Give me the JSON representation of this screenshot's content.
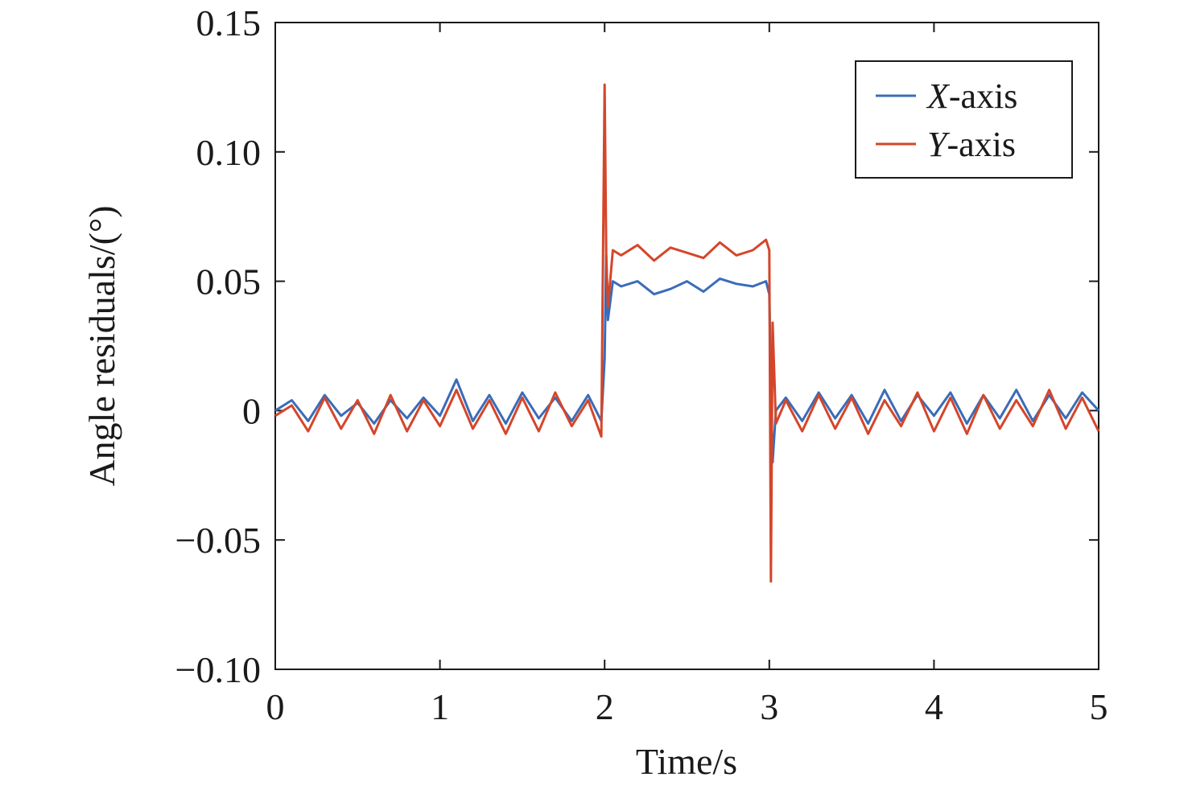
{
  "chart_data": {
    "type": "line",
    "xlabel": "Time/s",
    "ylabel": "Angle residuals/(°)",
    "xlim": [
      0,
      5
    ],
    "ylim": [
      -0.1,
      0.15
    ],
    "x_ticks": [
      0,
      1,
      2,
      3,
      4,
      5
    ],
    "x_tick_labels": [
      "0",
      "1",
      "2",
      "3",
      "4",
      "5"
    ],
    "y_ticks": [
      0.15,
      0.1,
      0.05,
      0,
      -0.05,
      -0.1
    ],
    "y_tick_labels": [
      "0.15",
      "0.10",
      "0.05",
      "0",
      "−0.05",
      "−0.10"
    ],
    "grid": false,
    "legend_position": "top-right",
    "series": [
      {
        "name_italic": "X",
        "name_rest": "-axis",
        "color": "#3a6cb8",
        "x": [
          0.0,
          0.1,
          0.2,
          0.3,
          0.4,
          0.5,
          0.6,
          0.7,
          0.8,
          0.9,
          1.0,
          1.1,
          1.2,
          1.3,
          1.4,
          1.5,
          1.6,
          1.7,
          1.8,
          1.9,
          1.98,
          2.0,
          2.01,
          2.02,
          2.05,
          2.1,
          2.2,
          2.3,
          2.4,
          2.5,
          2.6,
          2.7,
          2.8,
          2.9,
          2.98,
          3.0,
          3.01,
          3.02,
          3.04,
          3.1,
          3.2,
          3.3,
          3.4,
          3.5,
          3.6,
          3.7,
          3.8,
          3.9,
          4.0,
          4.1,
          4.2,
          4.3,
          4.4,
          4.5,
          4.6,
          4.7,
          4.8,
          4.9,
          5.0
        ],
        "y": [
          0.0,
          0.004,
          -0.004,
          0.006,
          -0.002,
          0.003,
          -0.005,
          0.004,
          -0.003,
          0.005,
          -0.002,
          0.012,
          -0.004,
          0.006,
          -0.005,
          0.007,
          -0.003,
          0.005,
          -0.004,
          0.006,
          -0.004,
          0.02,
          0.06,
          0.035,
          0.05,
          0.048,
          0.05,
          0.045,
          0.047,
          0.05,
          0.046,
          0.051,
          0.049,
          0.048,
          0.05,
          0.045,
          0.01,
          -0.02,
          0.0,
          0.005,
          -0.004,
          0.007,
          -0.003,
          0.006,
          -0.005,
          0.008,
          -0.004,
          0.006,
          -0.002,
          0.007,
          -0.005,
          0.006,
          -0.003,
          0.008,
          -0.004,
          0.006,
          -0.003,
          0.007,
          0.0
        ]
      },
      {
        "name_italic": "Y",
        "name_rest": "-axis",
        "color": "#d4462a",
        "x": [
          0.0,
          0.1,
          0.2,
          0.3,
          0.4,
          0.5,
          0.6,
          0.7,
          0.8,
          0.9,
          1.0,
          1.1,
          1.2,
          1.3,
          1.4,
          1.5,
          1.6,
          1.7,
          1.8,
          1.9,
          1.98,
          2.0,
          2.01,
          2.02,
          2.05,
          2.1,
          2.2,
          2.3,
          2.4,
          2.5,
          2.6,
          2.7,
          2.8,
          2.9,
          2.98,
          3.0,
          3.01,
          3.02,
          3.04,
          3.1,
          3.2,
          3.3,
          3.4,
          3.5,
          3.6,
          3.7,
          3.8,
          3.9,
          4.0,
          4.1,
          4.2,
          4.3,
          4.4,
          4.5,
          4.6,
          4.7,
          4.8,
          4.9,
          5.0
        ],
        "y": [
          -0.002,
          0.002,
          -0.008,
          0.005,
          -0.007,
          0.004,
          -0.009,
          0.006,
          -0.008,
          0.004,
          -0.006,
          0.008,
          -0.007,
          0.004,
          -0.009,
          0.005,
          -0.008,
          0.007,
          -0.006,
          0.004,
          -0.01,
          0.126,
          0.06,
          0.04,
          0.062,
          0.06,
          0.064,
          0.058,
          0.063,
          0.061,
          0.059,
          0.065,
          0.06,
          0.062,
          0.066,
          0.062,
          -0.066,
          0.034,
          -0.005,
          0.004,
          -0.008,
          0.006,
          -0.007,
          0.005,
          -0.009,
          0.004,
          -0.006,
          0.007,
          -0.008,
          0.005,
          -0.009,
          0.006,
          -0.007,
          0.004,
          -0.006,
          0.008,
          -0.007,
          0.005,
          -0.008
        ]
      }
    ]
  }
}
